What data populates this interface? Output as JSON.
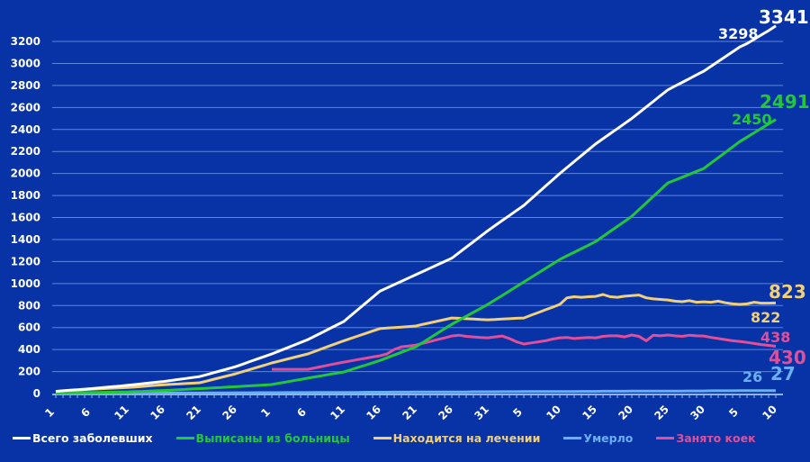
{
  "chart_data": {
    "type": "line",
    "title": "",
    "xlabel": "",
    "ylabel": "",
    "ylim": [
      0,
      3200
    ],
    "ytick_step": 200,
    "grid": true,
    "legend_position": "bottom",
    "background_color": "#0833a6",
    "categories": [
      "1",
      "2",
      "3",
      "4",
      "5",
      "6",
      "7",
      "8",
      "9",
      "10",
      "11",
      "12",
      "13",
      "14",
      "15",
      "16",
      "17",
      "18",
      "19",
      "20",
      "21",
      "22",
      "23",
      "24",
      "25",
      "26",
      "27",
      "28",
      "29",
      "30",
      "1",
      "2",
      "3",
      "4",
      "5",
      "6",
      "7",
      "8",
      "9",
      "10",
      "11",
      "12",
      "13",
      "14",
      "15",
      "16",
      "17",
      "18",
      "19",
      "20",
      "21",
      "22",
      "23",
      "24",
      "25",
      "26",
      "27",
      "28",
      "29",
      "30",
      "31",
      "1",
      "2",
      "3",
      "4",
      "5",
      "6",
      "7",
      "8",
      "9",
      "10",
      "11",
      "12",
      "13",
      "14",
      "15",
      "16",
      "17",
      "18",
      "19",
      "20",
      "21",
      "22",
      "23",
      "24",
      "25",
      "26",
      "27",
      "28",
      "29",
      "30",
      "1",
      "2",
      "3",
      "4",
      "5",
      "6",
      "7",
      "8",
      "9",
      "10"
    ],
    "x_tick_every": 5,
    "series": [
      {
        "name": "Всего заболевших",
        "color": "#ffffff",
        "values": [
          20,
          25,
          30,
          35,
          40,
          45,
          51,
          57,
          63,
          69,
          75,
          82,
          89,
          96,
          103,
          110,
          119,
          128,
          137,
          146,
          155,
          173,
          191,
          209,
          227,
          245,
          268,
          291,
          314,
          337,
          360,
          386,
          412,
          438,
          464,
          490,
          523,
          556,
          589,
          622,
          655,
          710,
          765,
          820,
          875,
          930,
          960,
          990,
          1020,
          1050,
          1080,
          1110,
          1140,
          1170,
          1200,
          1230,
          1280,
          1330,
          1380,
          1430,
          1480,
          1526,
          1572,
          1618,
          1664,
          1710,
          1768,
          1826,
          1884,
          1942,
          2000,
          2054,
          2108,
          2162,
          2216,
          2270,
          2316,
          2362,
          2408,
          2454,
          2500,
          2552,
          2604,
          2656,
          2708,
          2760,
          2794,
          2828,
          2862,
          2896,
          2930,
          2974,
          3018,
          3062,
          3106,
          3150,
          3180,
          3220,
          3260,
          3298,
          3341
        ],
        "labels": {
          "previous": "3298",
          "last": "3341"
        }
      },
      {
        "name": "Выписаны из больницы",
        "color": "#22c83a",
        "values": [
          5,
          6,
          7,
          8,
          9,
          10,
          11,
          12,
          13,
          14,
          15,
          18,
          20,
          23,
          25,
          28,
          31,
          35,
          38,
          42,
          45,
          48,
          52,
          55,
          59,
          62,
          66,
          70,
          74,
          78,
          82,
          94,
          105,
          117,
          128,
          140,
          151,
          162,
          174,
          185,
          196,
          217,
          238,
          258,
          279,
          300,
          325,
          350,
          375,
          400,
          425,
          466,
          507,
          548,
          589,
          630,
          666,
          702,
          738,
          774,
          810,
          851,
          891,
          932,
          973,
          1014,
          1055,
          1096,
          1137,
          1178,
          1219,
          1252,
          1284,
          1317,
          1349,
          1382,
          1428,
          1474,
          1519,
          1565,
          1611,
          1672,
          1732,
          1793,
          1853,
          1914,
          1940,
          1966,
          1993,
          2019,
          2045,
          2094,
          2143,
          2192,
          2241,
          2290,
          2330,
          2370,
          2410,
          2450,
          2491
        ],
        "labels": {
          "previous": "2450",
          "last": "2491"
        }
      },
      {
        "name": "Находится на лечении",
        "color": "#f0d07a",
        "values": [
          20,
          24,
          28,
          32,
          36,
          40,
          43,
          46,
          49,
          52,
          55,
          60,
          65,
          70,
          75,
          80,
          84,
          87,
          91,
          94,
          98,
          114,
          131,
          147,
          164,
          180,
          200,
          219,
          239,
          258,
          278,
          294,
          311,
          327,
          344,
          360,
          384,
          408,
          432,
          456,
          480,
          502,
          524,
          546,
          568,
          590,
          595,
          600,
          604,
          609,
          614,
          629,
          643,
          658,
          672,
          687,
          684,
          680,
          677,
          673,
          670,
          673,
          677,
          680,
          684,
          687,
          712,
          736,
          761,
          785,
          810,
          870,
          880,
          875,
          880,
          883,
          900,
          880,
          875,
          885,
          890,
          895,
          870,
          860,
          855,
          850,
          840,
          835,
          845,
          830,
          834,
          830,
          840,
          825,
          815,
          810,
          815,
          830,
          822,
          822,
          823
        ],
        "labels": {
          "previous": "822",
          "last": "823"
        }
      },
      {
        "name": "Умерло",
        "color": "#6aaff0",
        "values": [
          0,
          0,
          1,
          1,
          1,
          1,
          2,
          2,
          2,
          2,
          3,
          3,
          3,
          4,
          4,
          4,
          4,
          5,
          5,
          5,
          5,
          6,
          6,
          6,
          6,
          7,
          7,
          7,
          8,
          8,
          8,
          8,
          9,
          9,
          9,
          9,
          10,
          10,
          10,
          11,
          11,
          11,
          11,
          12,
          12,
          12,
          12,
          13,
          13,
          13,
          14,
          14,
          14,
          14,
          15,
          15,
          15,
          15,
          16,
          16,
          16,
          16,
          17,
          17,
          17,
          18,
          18,
          18,
          18,
          19,
          19,
          19,
          19,
          20,
          20,
          20,
          21,
          21,
          21,
          21,
          22,
          22,
          22,
          22,
          23,
          23,
          23,
          23,
          24,
          24,
          24,
          25,
          25,
          25,
          25,
          26,
          26,
          26,
          26,
          26,
          27
        ],
        "labels": {
          "previous": "26",
          "last": "27"
        }
      },
      {
        "name": "Занято коек",
        "color": "#e0509a",
        "values": [
          null,
          null,
          null,
          null,
          null,
          null,
          null,
          null,
          null,
          null,
          null,
          null,
          null,
          null,
          null,
          null,
          null,
          null,
          null,
          null,
          null,
          null,
          null,
          null,
          null,
          null,
          null,
          null,
          null,
          null,
          220,
          220,
          220,
          220,
          220,
          220,
          233,
          246,
          260,
          273,
          286,
          297,
          309,
          320,
          332,
          343,
          360,
          400,
          425,
          432,
          440,
          457,
          473,
          490,
          506,
          523,
          530,
          520,
          515,
          510,
          507,
          515,
          523,
          500,
          470,
          450,
          460,
          470,
          480,
          495,
          507,
          510,
          500,
          505,
          510,
          507,
          520,
          525,
          525,
          515,
          532,
          520,
          480,
          530,
          525,
          532,
          525,
          520,
          530,
          525,
          523,
          510,
          500,
          490,
          480,
          474,
          465,
          455,
          445,
          438,
          430
        ],
        "labels": {
          "previous": "438",
          "last": "430"
        }
      }
    ]
  }
}
